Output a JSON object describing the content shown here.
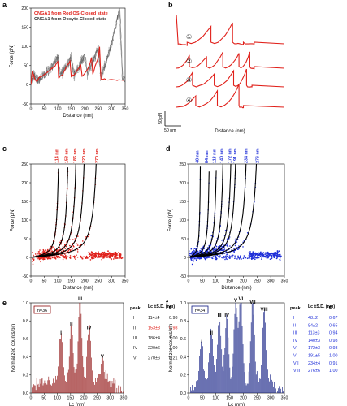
{
  "panel_labels": {
    "a": "a",
    "b": "b",
    "c": "c",
    "d": "d",
    "e": "e",
    "f": "f"
  },
  "colors": {
    "red": "#e0201a",
    "gray": "#5a5a5a",
    "blue": "#1f2fd8",
    "darkred": "#8e0c0c",
    "navy": "#0c1880",
    "black": "#000000"
  },
  "chart_data": [
    {
      "id": "a",
      "type": "line",
      "xlabel": "Distance (nm)",
      "ylabel": "Force (pN)",
      "xticks": [
        "0",
        "50",
        "100",
        "150",
        "200",
        "250",
        "300",
        "350"
      ],
      "yticks": [
        "-50",
        "0",
        "50",
        "100",
        "150",
        "200"
      ],
      "xlim": [
        0,
        350
      ],
      "ylim": [
        -50,
        200
      ],
      "series": [
        {
          "name": "CNGA1 from Rod OS-Closed state",
          "color": "red",
          "x": [
            0,
            5,
            10,
            15,
            20,
            25,
            30,
            40,
            50,
            60,
            70,
            80,
            90,
            100,
            103,
            110,
            120,
            130,
            140,
            145,
            150,
            160,
            170,
            180,
            185,
            190,
            200,
            210,
            220,
            225,
            230,
            235,
            240,
            250,
            255,
            260,
            280,
            300,
            320,
            340,
            350
          ],
          "values": [
            0,
            35,
            25,
            15,
            10,
            12,
            18,
            22,
            28,
            33,
            38,
            44,
            50,
            62,
            18,
            22,
            30,
            45,
            55,
            62,
            22,
            26,
            35,
            45,
            52,
            22,
            30,
            40,
            55,
            72,
            28,
            40,
            52,
            70,
            100,
            15,
            14,
            13,
            12,
            12,
            12
          ]
        },
        {
          "name": "CNGA1 from Oocyte-Closed state",
          "color": "gray",
          "x": [
            0,
            10,
            20,
            30,
            40,
            50,
            60,
            70,
            80,
            90,
            100,
            110,
            120,
            130,
            140,
            150,
            160,
            170,
            180,
            190,
            200,
            210,
            220,
            230,
            240,
            250,
            260,
            270,
            280,
            290,
            300,
            310,
            320,
            330,
            340,
            350
          ],
          "values": [
            0,
            30,
            15,
            12,
            20,
            25,
            32,
            40,
            50,
            60,
            75,
            25,
            35,
            45,
            60,
            70,
            25,
            35,
            50,
            65,
            75,
            30,
            45,
            60,
            80,
            95,
            20,
            40,
            60,
            85,
            110,
            140,
            170,
            195,
            15,
            15
          ]
        }
      ]
    },
    {
      "id": "b",
      "type": "line",
      "xlabel": "Distance (nm)",
      "scalebar_y": "50 pN",
      "scalebar_x": "50 nm",
      "traces": [
        {
          "label": "①"
        },
        {
          "label": "②"
        },
        {
          "label": "③"
        },
        {
          "label": "④"
        }
      ]
    },
    {
      "id": "c",
      "type": "scatter",
      "xlabel": "Distance (nm)",
      "ylabel": "Force (pN)",
      "xticks": [
        "0",
        "50",
        "100",
        "150",
        "200",
        "250",
        "300",
        "350"
      ],
      "yticks": [
        "-50",
        "0",
        "50",
        "100",
        "150",
        "200",
        "250"
      ],
      "xlim": [
        0,
        350
      ],
      "ylim": [
        -50,
        250
      ],
      "contour_lengths": [
        "114 nm",
        "153 nm",
        "186 nm",
        "220 nm",
        "270 nm"
      ],
      "contour_values": [
        114,
        153,
        186,
        220,
        270
      ]
    },
    {
      "id": "d",
      "type": "scatter",
      "xlabel": "Distance (nm)",
      "ylabel": "Force (pN)",
      "xticks": [
        "0",
        "50",
        "100",
        "150",
        "200",
        "250",
        "300",
        "350"
      ],
      "yticks": [
        "-50",
        "0",
        "50",
        "100",
        "150",
        "200",
        "250"
      ],
      "xlim": [
        0,
        350
      ],
      "ylim": [
        -50,
        250
      ],
      "contour_lengths": [
        "48 nm",
        "84 nm",
        "113 nm",
        "140 nm",
        "172 nm",
        "191 nm",
        "234 nm",
        "276 nm"
      ],
      "contour_values": [
        48,
        84,
        113,
        140,
        172,
        191,
        234,
        276
      ]
    },
    {
      "id": "e",
      "type": "bar",
      "xlabel": "Lc (nm)",
      "ylabel": "Normalized counts/bin",
      "xticks": [
        "0",
        "50",
        "100",
        "150",
        "200",
        "250",
        "300",
        "350"
      ],
      "yticks": [
        "0.0",
        "0.2",
        "0.4",
        "0.6",
        "0.8",
        "1.0"
      ],
      "xlim": [
        0,
        350
      ],
      "ylim": [
        0,
        1.0
      ],
      "n_label": "n=36",
      "peak_labels": [
        "I",
        "II",
        "III",
        "IV",
        "V"
      ],
      "peak_positions": [
        114,
        153,
        186,
        220,
        270
      ],
      "table": {
        "headers": [
          "peak",
          "Lc ±S.D. (nm)",
          "P"
        ],
        "rows": [
          [
            "I",
            "114±4",
            "0.98"
          ],
          [
            "II",
            "153±3",
            "0.98"
          ],
          [
            "III",
            "186±4",
            "1.00"
          ],
          [
            "IV",
            "220±6",
            "1.00"
          ],
          [
            "V",
            "270±6",
            "0.21"
          ]
        ]
      }
    },
    {
      "id": "f",
      "type": "bar",
      "xlabel": "Lc (nm)",
      "ylabel": "Normalized counts/bin",
      "xticks": [
        "0",
        "50",
        "100",
        "150",
        "200",
        "250",
        "300",
        "350"
      ],
      "yticks": [
        "0.0",
        "0.2",
        "0.4",
        "0.6",
        "0.8",
        "1.0"
      ],
      "xlim": [
        0,
        350
      ],
      "ylim": [
        0,
        1.0
      ],
      "n_label": "n=34",
      "peak_labels": [
        "I",
        "II",
        "III",
        "IV",
        "V",
        "VI",
        "VII",
        "VIII"
      ],
      "peak_positions": [
        48,
        84,
        113,
        140,
        172,
        191,
        234,
        276
      ],
      "table": {
        "headers": [
          "peak",
          "Lc ±S.D. (nm)",
          "P"
        ],
        "rows": [
          [
            "I",
            "48±2",
            "0.67"
          ],
          [
            "II",
            "84±2",
            "0.65"
          ],
          [
            "III",
            "113±3",
            "0.94"
          ],
          [
            "IV",
            "140±3",
            "0.98"
          ],
          [
            "V",
            "172±3",
            "0.98"
          ],
          [
            "VI",
            "191±5",
            "1.00"
          ],
          [
            "VII",
            "234±4",
            "0.91"
          ],
          [
            "VIII",
            "276±6",
            "1.00"
          ]
        ]
      }
    }
  ]
}
